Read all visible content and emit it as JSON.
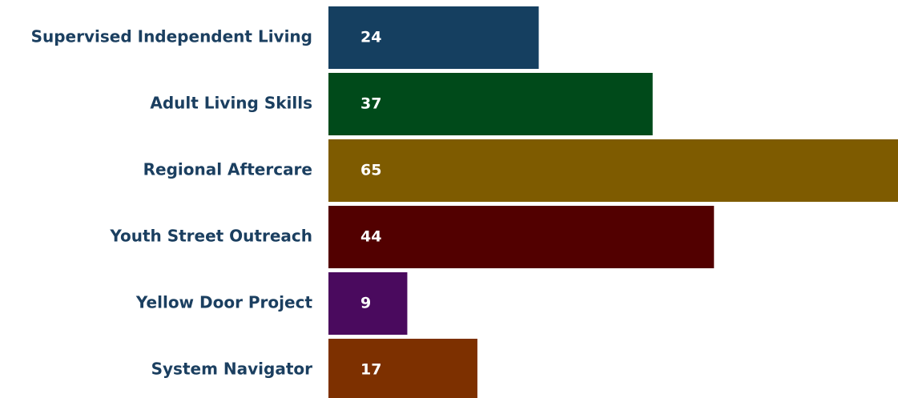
{
  "chart_data": {
    "type": "hbar",
    "categories": [
      "Supervised Independent Living",
      "Adult Living Skills",
      "Regional Aftercare",
      "Youth Street Outreach",
      "Yellow Door Project",
      "System Navigator"
    ],
    "values": [
      24,
      37,
      65,
      44,
      9,
      17
    ],
    "colors": [
      "#153f60",
      "#004a1a",
      "#7e5b00",
      "#520000",
      "#4a0a5e",
      "#7d3000"
    ]
  }
}
